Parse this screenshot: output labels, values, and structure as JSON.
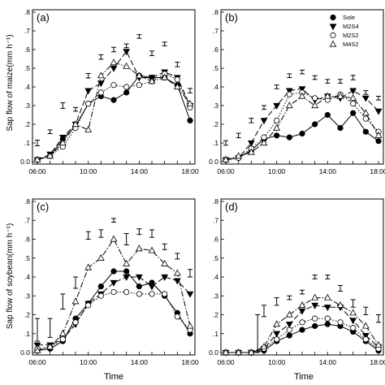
{
  "xlabel": "Time",
  "ylabels": {
    "maize": "Sap flow of maize(mm h⁻¹)",
    "soybean": "Sap flow of soybean(mm h⁻¹)"
  },
  "legend": [
    "Sole",
    "M2S4",
    "M2S2",
    "M4S2"
  ],
  "chart_data": [
    {
      "type": "line",
      "panel": "(a)",
      "ylim": [
        0,
        0.8
      ],
      "x": [
        6,
        7,
        8,
        9,
        10,
        11,
        12,
        13,
        14,
        15,
        16,
        17,
        18
      ],
      "x_tick_labels": [
        "06:00",
        "10:00",
        "14:00",
        "18:00"
      ],
      "y_tick_labels": [
        "0.0",
        ".1",
        ".2",
        ".3",
        ".4",
        ".5",
        ".6",
        ".7",
        ".8"
      ],
      "series": [
        {
          "name": "Sole",
          "values": [
            0.01,
            0.03,
            0.12,
            0.19,
            0.31,
            0.35,
            0.33,
            0.37,
            0.46,
            0.45,
            0.45,
            0.41,
            0.22
          ]
        },
        {
          "name": "M2S4",
          "values": [
            0.01,
            0.04,
            0.13,
            0.2,
            0.38,
            0.42,
            0.5,
            0.59,
            0.45,
            0.45,
            0.48,
            0.45,
            0.3
          ]
        },
        {
          "name": "M2S2",
          "values": [
            0.01,
            0.03,
            0.08,
            0.18,
            0.31,
            0.37,
            0.41,
            0.4,
            0.41,
            0.43,
            0.47,
            0.44,
            0.29
          ]
        },
        {
          "name": "M4S2",
          "values": [
            0.01,
            0.03,
            0.1,
            0.2,
            0.17,
            0.46,
            0.53,
            0.51,
            0.46,
            0.43,
            0.45,
            0.4,
            0.31
          ]
        }
      ],
      "error_bars": {
        "x": [
          6,
          7,
          8,
          9,
          10,
          11,
          12,
          13,
          14,
          15,
          16,
          17,
          18
        ],
        "center": [
          0.1,
          0.16,
          0.3,
          0.28,
          0.46,
          0.56,
          0.6,
          0.62,
          0.67,
          0.58,
          0.63,
          0.52,
          0.38
        ],
        "half": [
          0.015,
          0.01,
          0.015,
          0.01,
          0.012,
          0.012,
          0.012,
          0.01,
          0.01,
          0.012,
          0.01,
          0.012,
          0.012
        ]
      }
    },
    {
      "type": "line",
      "panel": "(b)",
      "ylim": [
        0,
        0.8
      ],
      "x": [
        6,
        7,
        8,
        9,
        10,
        11,
        12,
        13,
        14,
        15,
        16,
        17,
        18
      ],
      "x_tick_labels": [
        "06:00",
        "10:00",
        "14:00",
        "18:00"
      ],
      "y_tick_labels": [
        "0.0",
        ".1",
        ".2",
        ".3",
        ".4",
        ".5",
        ".6",
        ".7",
        ".8"
      ],
      "series": [
        {
          "name": "Sole",
          "values": [
            0.01,
            0.02,
            0.06,
            0.12,
            0.14,
            0.13,
            0.15,
            0.2,
            0.25,
            0.18,
            0.26,
            0.16,
            0.11
          ]
        },
        {
          "name": "M2S4",
          "values": [
            0.01,
            0.02,
            0.1,
            0.22,
            0.3,
            0.38,
            0.39,
            0.33,
            0.35,
            0.34,
            0.38,
            0.34,
            0.27
          ]
        },
        {
          "name": "M2S2",
          "values": [
            0.01,
            0.02,
            0.07,
            0.13,
            0.22,
            0.36,
            0.37,
            0.34,
            0.33,
            0.36,
            0.31,
            0.23,
            0.16
          ]
        },
        {
          "name": "M4S2",
          "values": [
            0.01,
            0.03,
            0.05,
            0.1,
            0.18,
            0.3,
            0.35,
            0.3,
            0.35,
            0.35,
            0.34,
            0.26,
            0.14
          ]
        }
      ],
      "error_bars": {
        "x": [
          6,
          7,
          8,
          9,
          10,
          11,
          12,
          13,
          14,
          15,
          16,
          17,
          18
        ],
        "center": [
          0.1,
          0.14,
          0.22,
          0.29,
          0.4,
          0.46,
          0.48,
          0.45,
          0.43,
          0.43,
          0.45,
          0.37,
          0.34
        ],
        "half": [
          0.012,
          0.012,
          0.012,
          0.01,
          0.01,
          0.01,
          0.01,
          0.01,
          0.01,
          0.01,
          0.012,
          0.01,
          0.01
        ]
      }
    },
    {
      "type": "line",
      "panel": "(c)",
      "ylim": [
        0,
        0.8
      ],
      "x": [
        6,
        7,
        8,
        9,
        10,
        11,
        12,
        13,
        14,
        15,
        16,
        17,
        18
      ],
      "x_tick_labels": [
        "06:00",
        "10:00",
        "14:00",
        "18:00"
      ],
      "y_tick_labels": [
        "0.0",
        ".1",
        ".2",
        ".3",
        ".4",
        ".5",
        ".6",
        ".7",
        ".8"
      ],
      "series": [
        {
          "name": "Sole",
          "values": [
            0.01,
            0.02,
            0.06,
            0.18,
            0.26,
            0.35,
            0.43,
            0.43,
            0.35,
            0.37,
            0.3,
            0.21,
            0.1
          ]
        },
        {
          "name": "M2S4",
          "values": [
            0.04,
            0.04,
            0.07,
            0.15,
            0.26,
            0.31,
            0.37,
            0.4,
            0.4,
            0.35,
            0.4,
            0.38,
            0.31
          ]
        },
        {
          "name": "M2S2",
          "values": [
            0.02,
            0.03,
            0.07,
            0.16,
            0.25,
            0.3,
            0.32,
            0.32,
            0.31,
            0.31,
            0.31,
            0.19,
            0.12
          ]
        },
        {
          "name": "M4S2",
          "values": [
            0.01,
            0.03,
            0.1,
            0.27,
            0.45,
            0.5,
            0.6,
            0.47,
            0.55,
            0.54,
            0.47,
            0.42,
            0.14
          ]
        }
      ],
      "error_bars": {
        "x": [
          6,
          7,
          8,
          9,
          10,
          11,
          12,
          13,
          14,
          15,
          16,
          17,
          18
        ],
        "center": [
          0.12,
          0.13,
          0.27,
          0.37,
          0.62,
          0.63,
          0.7,
          0.6,
          0.64,
          0.63,
          0.56,
          0.51,
          0.42
        ],
        "half": [
          0.06,
          0.05,
          0.04,
          0.03,
          0.02,
          0.02,
          0.01,
          0.03,
          0.015,
          0.02,
          0.015,
          0.015,
          0.02
        ]
      }
    },
    {
      "type": "line",
      "panel": "(d)",
      "ylim": [
        0,
        0.8
      ],
      "x": [
        6,
        7,
        8,
        9,
        10,
        11,
        12,
        13,
        14,
        15,
        16,
        17,
        18
      ],
      "x_tick_labels": [
        "06:00",
        "10:00",
        "14:00",
        "18:00"
      ],
      "y_tick_labels": [
        "0.0",
        ".1",
        ".2",
        ".3",
        ".4",
        ".5",
        ".6",
        ".7",
        ".8"
      ],
      "series": [
        {
          "name": "Sole",
          "values": [
            0.0,
            0.0,
            0.0,
            0.01,
            0.06,
            0.09,
            0.12,
            0.14,
            0.15,
            0.14,
            0.11,
            0.06,
            0.01
          ]
        },
        {
          "name": "M2S4",
          "values": [
            0.0,
            0.0,
            0.0,
            0.02,
            0.1,
            0.15,
            0.22,
            0.25,
            0.24,
            0.24,
            0.17,
            0.09,
            0.03
          ]
        },
        {
          "name": "M2S2",
          "values": [
            0.0,
            0.0,
            0.0,
            0.02,
            0.07,
            0.12,
            0.16,
            0.18,
            0.18,
            0.16,
            0.13,
            0.07,
            0.02
          ]
        },
        {
          "name": "M4S2",
          "values": [
            0.0,
            0.0,
            0.0,
            0.03,
            0.15,
            0.2,
            0.25,
            0.29,
            0.29,
            0.25,
            0.21,
            0.14,
            0.04
          ]
        }
      ],
      "error_bars": {
        "x": [
          8.5,
          9,
          10,
          11,
          12,
          13,
          14,
          15,
          16,
          17,
          18
        ],
        "center": [
          0.1,
          0.22,
          0.27,
          0.29,
          0.32,
          0.4,
          0.4,
          0.34,
          0.26,
          0.22,
          0.18
        ],
        "half": [
          0.1,
          0.03,
          0.02,
          0.01,
          0.01,
          0.01,
          0.01,
          0.015,
          0.02,
          0.02,
          0.02
        ]
      }
    }
  ]
}
